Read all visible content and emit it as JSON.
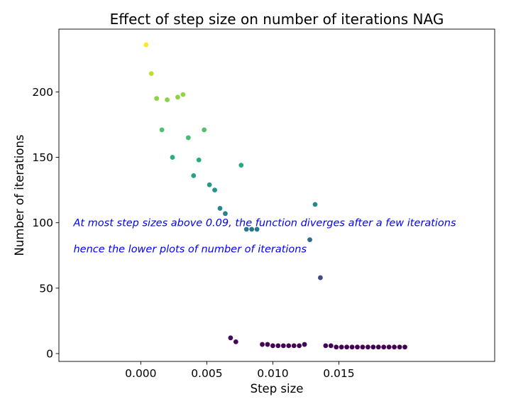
{
  "chart_data": {
    "type": "scatter",
    "title": "Effect of step size on number of iterations NAG",
    "xlabel": "Step size",
    "ylabel": "Number of iterations",
    "xlim": [
      -0.0062,
      0.0268
    ],
    "ylim": [
      -6,
      248
    ],
    "xticks": [
      0.0,
      0.005,
      0.01,
      0.015
    ],
    "xtick_labels": [
      "0.000",
      "0.005",
      "0.010",
      "0.015"
    ],
    "yticks": [
      0,
      50,
      100,
      150,
      200
    ],
    "ytick_labels": [
      "0",
      "50",
      "100",
      "150",
      "200"
    ],
    "grid": false,
    "legend": "none",
    "colormap": "viridis",
    "annotation_color": "#0000ff",
    "annotations": [
      {
        "text": "At most step sizes above 0.09, the function diverges after a few iterations",
        "x": -0.0051,
        "y": 100
      },
      {
        "text": "hence the lower plots of number of iterations",
        "x": -0.0051,
        "y": 80
      }
    ],
    "points": [
      {
        "x": 0.0004,
        "y": 236
      },
      {
        "x": 0.0008,
        "y": 214
      },
      {
        "x": 0.0012,
        "y": 195
      },
      {
        "x": 0.0016,
        "y": 171
      },
      {
        "x": 0.002,
        "y": 194
      },
      {
        "x": 0.0024,
        "y": 150
      },
      {
        "x": 0.0028,
        "y": 196
      },
      {
        "x": 0.0032,
        "y": 198
      },
      {
        "x": 0.0036,
        "y": 165
      },
      {
        "x": 0.004,
        "y": 136
      },
      {
        "x": 0.0044,
        "y": 148
      },
      {
        "x": 0.0048,
        "y": 171
      },
      {
        "x": 0.0052,
        "y": 129
      },
      {
        "x": 0.0056,
        "y": 125
      },
      {
        "x": 0.006,
        "y": 111
      },
      {
        "x": 0.0064,
        "y": 107
      },
      {
        "x": 0.0068,
        "y": 12
      },
      {
        "x": 0.0072,
        "y": 9
      },
      {
        "x": 0.0076,
        "y": 144
      },
      {
        "x": 0.008,
        "y": 95
      },
      {
        "x": 0.0084,
        "y": 95
      },
      {
        "x": 0.0088,
        "y": 95
      },
      {
        "x": 0.0092,
        "y": 7
      },
      {
        "x": 0.0096,
        "y": 7
      },
      {
        "x": 0.01,
        "y": 6
      },
      {
        "x": 0.0104,
        "y": 6
      },
      {
        "x": 0.0108,
        "y": 6
      },
      {
        "x": 0.0112,
        "y": 6
      },
      {
        "x": 0.0116,
        "y": 6
      },
      {
        "x": 0.012,
        "y": 6
      },
      {
        "x": 0.0124,
        "y": 7
      },
      {
        "x": 0.0128,
        "y": 87
      },
      {
        "x": 0.0132,
        "y": 114
      },
      {
        "x": 0.0136,
        "y": 58
      },
      {
        "x": 0.014,
        "y": 6
      },
      {
        "x": 0.0144,
        "y": 6
      },
      {
        "x": 0.0148,
        "y": 5
      },
      {
        "x": 0.0152,
        "y": 5
      },
      {
        "x": 0.0156,
        "y": 5
      },
      {
        "x": 0.016,
        "y": 5
      },
      {
        "x": 0.0164,
        "y": 5
      },
      {
        "x": 0.0168,
        "y": 5
      },
      {
        "x": 0.0172,
        "y": 5
      },
      {
        "x": 0.0176,
        "y": 5
      },
      {
        "x": 0.018,
        "y": 5
      },
      {
        "x": 0.0184,
        "y": 5
      },
      {
        "x": 0.0188,
        "y": 5
      },
      {
        "x": 0.0192,
        "y": 5
      },
      {
        "x": 0.0196,
        "y": 5
      },
      {
        "x": 0.02,
        "y": 5
      }
    ]
  }
}
